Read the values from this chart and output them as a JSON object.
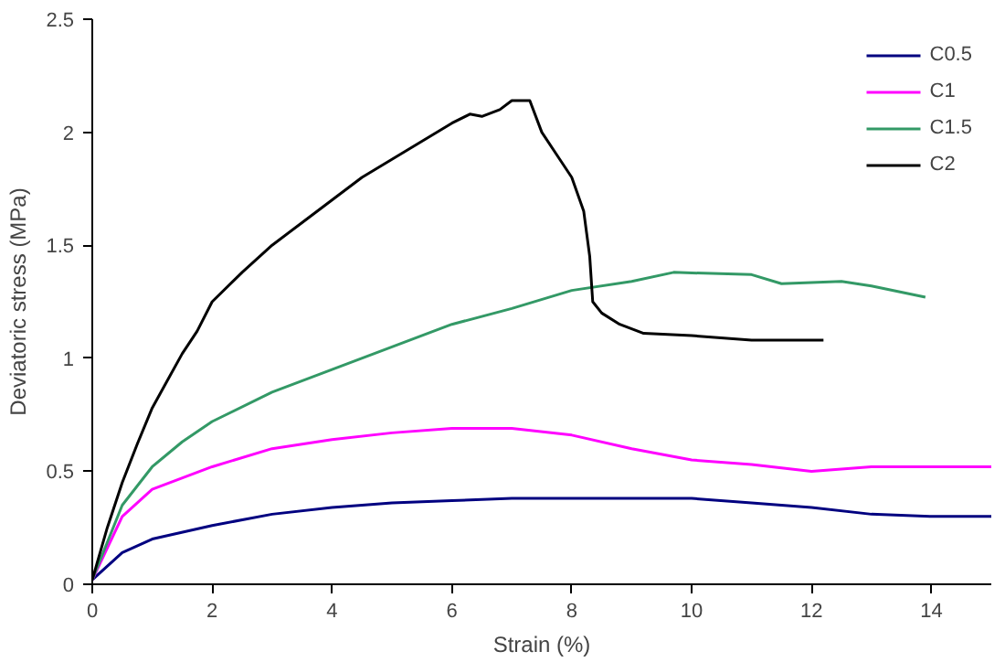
{
  "chart_data": {
    "type": "line",
    "xlabel": "Strain (%)",
    "ylabel": "Deviatoric stress (MPa)",
    "xlim": [
      0,
      15
    ],
    "ylim": [
      0,
      2.5
    ],
    "xticks": [
      0,
      2,
      4,
      6,
      8,
      10,
      12,
      14
    ],
    "yticks": [
      0,
      0.5,
      1,
      1.5,
      2,
      2.5
    ],
    "grid": false,
    "legend": "top right",
    "marker": "none",
    "line_style": "solid",
    "series": [
      {
        "name": "C0.5",
        "color": "#000080",
        "x": [
          0,
          0.5,
          1,
          2,
          3,
          4,
          5,
          6,
          7,
          8,
          9,
          10,
          11,
          12,
          13,
          14,
          15
        ],
        "values": [
          0.02,
          0.14,
          0.2,
          0.26,
          0.31,
          0.34,
          0.36,
          0.37,
          0.38,
          0.38,
          0.38,
          0.38,
          0.36,
          0.34,
          0.31,
          0.3,
          0.3
        ]
      },
      {
        "name": "C1",
        "color": "#ff00ff",
        "x": [
          0,
          0.5,
          1,
          2,
          3,
          4,
          5,
          6,
          7,
          8,
          9,
          10,
          11,
          12,
          13,
          14,
          15
        ],
        "values": [
          0.02,
          0.3,
          0.42,
          0.52,
          0.6,
          0.64,
          0.67,
          0.69,
          0.69,
          0.66,
          0.6,
          0.55,
          0.53,
          0.5,
          0.52,
          0.52,
          0.52
        ]
      },
      {
        "name": "C1.5",
        "color": "#339966",
        "x": [
          0,
          0.5,
          1,
          1.5,
          2,
          3,
          4,
          5,
          6,
          7,
          8,
          9,
          9.7,
          11,
          11.5,
          12.5,
          13,
          13.9
        ],
        "values": [
          0.02,
          0.35,
          0.52,
          0.63,
          0.72,
          0.85,
          0.95,
          1.05,
          1.15,
          1.22,
          1.3,
          1.34,
          1.38,
          1.37,
          1.33,
          1.34,
          1.32,
          1.27
        ]
      },
      {
        "name": "C2",
        "color": "#000000",
        "x": [
          0,
          0.25,
          0.5,
          0.75,
          1,
          1.25,
          1.5,
          1.75,
          2,
          2.5,
          3,
          3.5,
          4,
          4.5,
          5,
          5.5,
          6,
          6.3,
          6.5,
          6.8,
          7,
          7.3,
          7.5,
          7.8,
          8,
          8.2,
          8.3,
          8.35,
          8.5,
          8.8,
          9.2,
          10,
          11,
          12.2
        ],
        "values": [
          0.02,
          0.25,
          0.45,
          0.62,
          0.78,
          0.9,
          1.02,
          1.12,
          1.25,
          1.38,
          1.5,
          1.6,
          1.7,
          1.8,
          1.88,
          1.96,
          2.04,
          2.08,
          2.07,
          2.1,
          2.14,
          2.14,
          2.0,
          1.88,
          1.8,
          1.65,
          1.45,
          1.25,
          1.2,
          1.15,
          1.11,
          1.1,
          1.08,
          1.08
        ]
      }
    ]
  }
}
